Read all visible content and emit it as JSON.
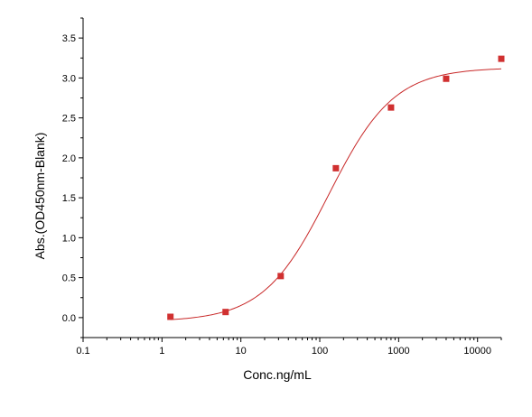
{
  "chart_data": {
    "type": "scatter",
    "xlabel": "Conc.ng/mL",
    "ylabel": "Abs.(OD450nm-Blank)",
    "x_scale": "log",
    "xlim": [
      0.1,
      20000
    ],
    "ylim": [
      -0.25,
      3.75
    ],
    "x_ticks": [
      {
        "value": 0.1,
        "label": "0.1"
      },
      {
        "value": 1,
        "label": "1"
      },
      {
        "value": 10,
        "label": "10"
      },
      {
        "value": 100,
        "label": "100"
      },
      {
        "value": 1000,
        "label": "1000"
      },
      {
        "value": 10000,
        "label": "10000"
      }
    ],
    "y_ticks": [
      {
        "value": 0.0,
        "label": "0.0"
      },
      {
        "value": 0.5,
        "label": "0.5"
      },
      {
        "value": 1.0,
        "label": "1.0"
      },
      {
        "value": 1.5,
        "label": "1.5"
      },
      {
        "value": 2.0,
        "label": "2.0"
      },
      {
        "value": 2.5,
        "label": "2.5"
      },
      {
        "value": 3.0,
        "label": "3.0"
      },
      {
        "value": 3.5,
        "label": "3.5"
      }
    ],
    "grid": false,
    "points": [
      {
        "x": 1.28,
        "y": 0.01
      },
      {
        "x": 6.4,
        "y": 0.07
      },
      {
        "x": 32,
        "y": 0.52
      },
      {
        "x": 160,
        "y": 1.87
      },
      {
        "x": 800,
        "y": 2.63
      },
      {
        "x": 4000,
        "y": 2.99
      },
      {
        "x": 20000,
        "y": 3.24
      }
    ],
    "fit_curve": {
      "model": "4PL",
      "bottom": -0.05,
      "top": 3.13,
      "ec50": 130,
      "hill": 1.05,
      "x_range": [
        1.28,
        20000
      ]
    },
    "colors": {
      "points": "#d03030",
      "curve": "#c82828",
      "axes": "#000000"
    }
  }
}
